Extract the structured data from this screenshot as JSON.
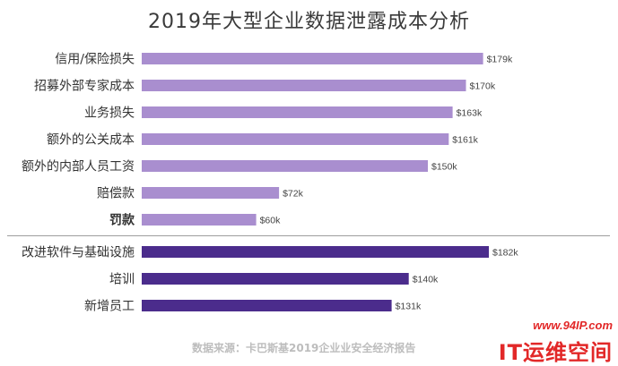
{
  "chart_data": {
    "type": "bar",
    "orientation": "horizontal",
    "title": "2019年大型企业数据泄露成本分析",
    "categories": [
      "信用/保险损失",
      "招募外部专家成本",
      "业务损失",
      "额外的公关成本",
      "额外的内部人员工资",
      "赔偿款",
      "罚款",
      "改进软件与基础设施",
      "培训",
      "新增员工"
    ],
    "values": [
      179,
      170,
      163,
      161,
      150,
      72,
      60,
      182,
      140,
      131
    ],
    "value_labels": [
      "$179k",
      "$170k",
      "$163k",
      "$161k",
      "$150k",
      "$72k",
      "$60k",
      "$182k",
      "$140k",
      "$131k"
    ],
    "unit": "$k",
    "xlim": [
      0,
      200
    ],
    "grid": false,
    "legend": "none",
    "groups": [
      {
        "name": "losses",
        "indices": [
          0,
          1,
          2,
          3,
          4,
          5,
          6
        ],
        "color": "#a98ecf"
      },
      {
        "name": "investments",
        "indices": [
          7,
          8,
          9
        ],
        "color": "#4b2c8c"
      }
    ],
    "highlighted_category": {
      "index": 6,
      "color": "#c4262e"
    },
    "category_text_color": "#333333",
    "divider_color": "#9e9e9e"
  },
  "source_note": "数据来源：卡巴斯基2019企业业安全经济报告",
  "watermark": {
    "url": "www.94IP.com",
    "name": "IT运维空间",
    "color": "#e22828"
  }
}
